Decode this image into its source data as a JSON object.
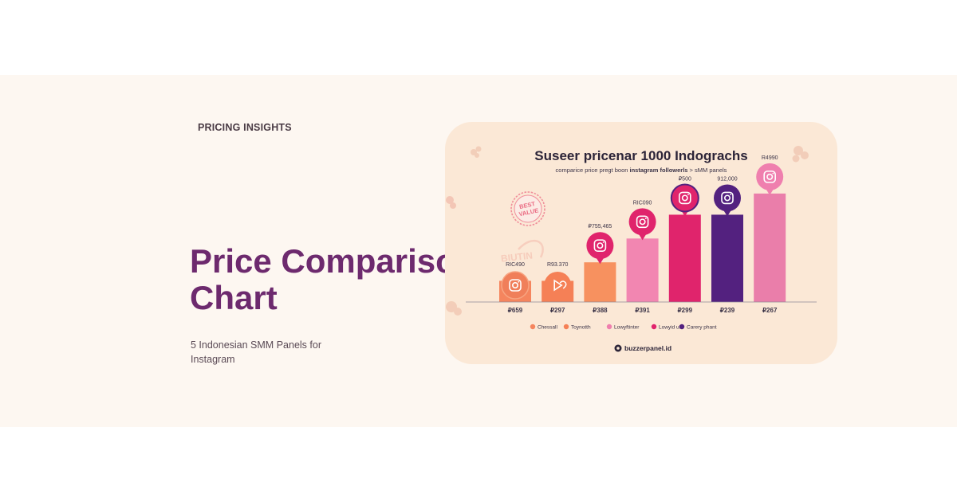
{
  "page": {
    "eyebrow": "PRICING INSIGHTS",
    "title_line1": "Price Comparison",
    "title_line2": "Chart",
    "subtitle": "5 Indonesian SMM Panels for Instagram"
  },
  "colors": {
    "band": "#fdf7f1",
    "card": "#fbe8d6",
    "title": "#6d2a6e",
    "orange": "#f5855e",
    "light_orange": "#f7915f",
    "pink": "#ef7fae",
    "magenta": "#e0246c",
    "purple": "#53217f",
    "rose": "#ea7eaa"
  },
  "chart_data": {
    "type": "bar",
    "title": "Suseer pricenar 1000 Indograchs",
    "subtitle_pre": "comparice price pregt boon ",
    "subtitle_bold": "instagram followerls",
    "subtitle_post": " > sMM panels",
    "badge": "BEST VALUE",
    "watermark": "BIUTIN",
    "brand": "buzzerpanel.id",
    "ylim": [
      0,
      5
    ],
    "grid": false,
    "legend_position": "bottom",
    "categories": [
      "₽659",
      "₽297",
      "₽388",
      "₽391",
      "₽299",
      "₽239",
      "₽267"
    ],
    "values": [
      0.8,
      0.8,
      1.5,
      2.4,
      3.3,
      3.3,
      4.1
    ],
    "bar_labels": [
      "RIC490",
      "R93.370",
      "₽755,465",
      "RIC090",
      "₽500",
      "912,000",
      "R4990"
    ],
    "bar_colors": [
      "#f5855e",
      "#f58056",
      "#f7915f",
      "#f286b1",
      "#e0246c",
      "#53217f",
      "#ea7eaa"
    ],
    "icon_colors": [
      "#f07f5a",
      "#f58056",
      "#e0246c",
      "#e0246c",
      "#e0246c",
      "#53217f",
      "#ef7fae"
    ],
    "icons": [
      "instagram-icon",
      "play-heart-icon",
      "instagram-icon",
      "instagram-icon",
      "instagram-icon",
      "instagram-icon",
      "instagram-icon"
    ],
    "legend": [
      {
        "label": "Chessall",
        "color": "#f5855e"
      },
      {
        "label": "Toynotth",
        "color": "#f58056"
      },
      {
        "label": "Lowyftinter",
        "color": "#ef7fae"
      },
      {
        "label": "Lowyid uk",
        "color": "#e0246c"
      },
      {
        "label": "Carery phant",
        "color": "#53217f"
      }
    ]
  }
}
